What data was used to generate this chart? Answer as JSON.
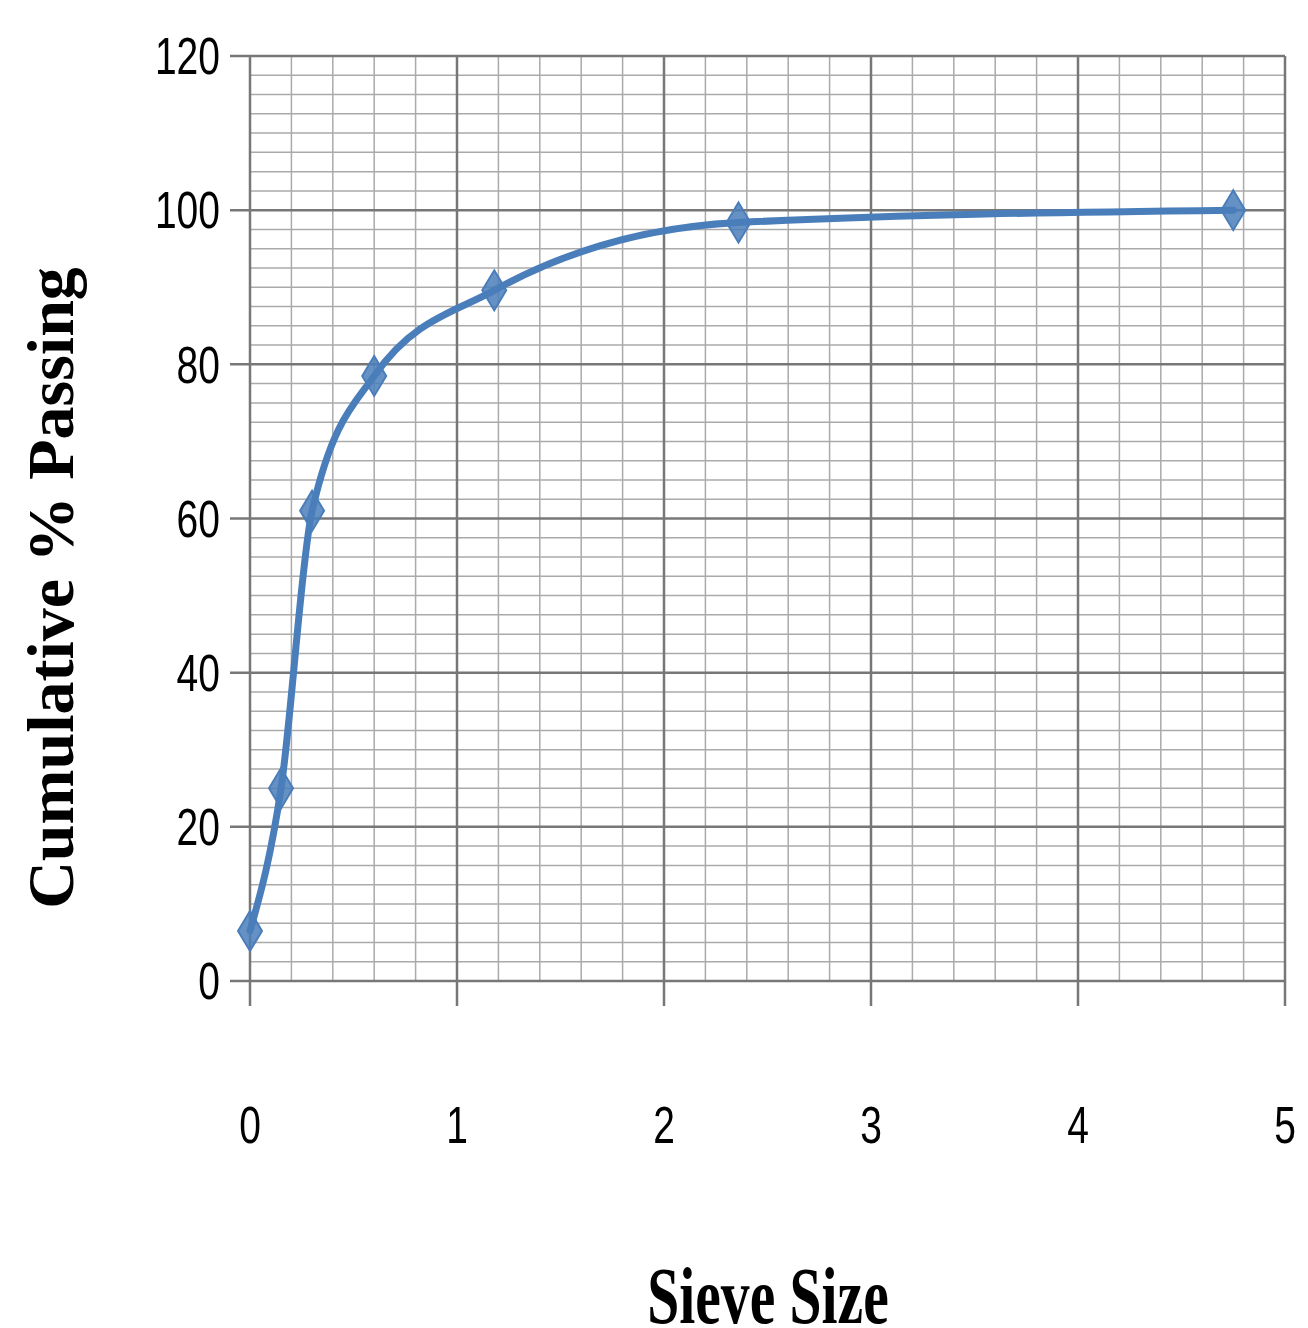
{
  "chart_data": {
    "type": "line",
    "xlabel": "Sieve Size",
    "ylabel": "Cumulative %  Passing",
    "x": [
      0,
      0.15,
      0.3,
      0.6,
      1.18,
      2.36,
      4.75
    ],
    "series": [
      {
        "color": "#4a7ebb",
        "values": [
          6.5,
          25,
          61,
          78.5,
          89.6,
          98.4,
          100
        ]
      }
    ],
    "xlim": [
      0,
      5
    ],
    "xticks": [
      0,
      1,
      2,
      3,
      4,
      5
    ],
    "ylim": [
      0,
      120
    ],
    "yticks": [
      0,
      20,
      40,
      60,
      80,
      100,
      120
    ],
    "grid": true,
    "marker": "diamond",
    "line_style": "solid"
  }
}
